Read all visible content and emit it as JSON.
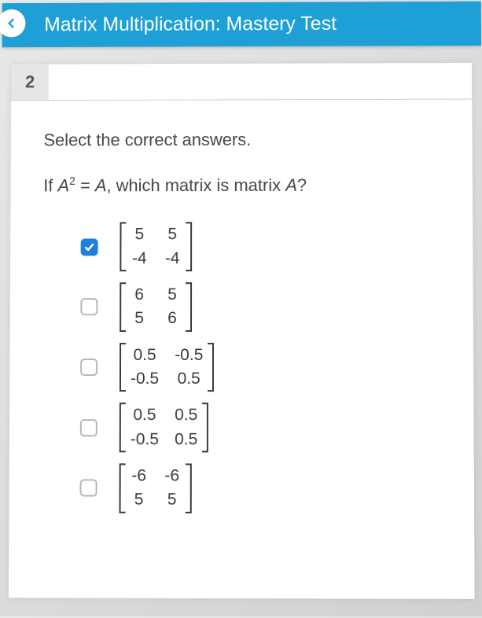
{
  "header": {
    "title": "Matrix Multiplication: Mastery Test",
    "bg_color": "#1e9fd6",
    "text_color": "#ffffff"
  },
  "question": {
    "number": "2",
    "instruction": "Select the correct answers.",
    "prompt_prefix": "If ",
    "prompt_var": "A",
    "prompt_exp": "2",
    "prompt_mid": " = ",
    "prompt_var2": "A",
    "prompt_suffix": ", which matrix is matrix ",
    "prompt_var3": "A",
    "prompt_end": "?"
  },
  "options": [
    {
      "checked": true,
      "cells": [
        "5",
        "5",
        "-4",
        "-4"
      ]
    },
    {
      "checked": false,
      "cells": [
        "6",
        "5",
        "5",
        "6"
      ]
    },
    {
      "checked": false,
      "cells": [
        "0.5",
        "-0.5",
        "-0.5",
        "0.5"
      ]
    },
    {
      "checked": false,
      "cells": [
        "0.5",
        "0.5",
        "-0.5",
        "0.5"
      ]
    },
    {
      "checked": false,
      "cells": [
        "-6",
        "-6",
        "5",
        "5"
      ]
    }
  ],
  "styles": {
    "checkbox_checked_bg": "#1e7fe0",
    "checkbox_border": "#b8b8b8",
    "text_color": "#464646",
    "matrix_text": "#3a3a3a",
    "page_bg_from": "#e8e8e8",
    "page_bg_to": "#d0d0d0",
    "qnum_bg": "#e6e6e6"
  }
}
